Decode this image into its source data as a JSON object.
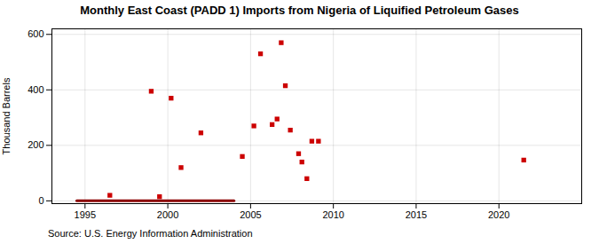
{
  "chart_data": {
    "type": "scatter",
    "title": "Monthly East Coast (PADD 1) Imports from Nigeria of Liquified Petroleum Gases",
    "ylabel": "Thousand Barrels",
    "source": "Source: U.S. Energy Information Administration",
    "xlim": [
      1993,
      2025
    ],
    "xticks": [
      1995,
      2000,
      2005,
      2010,
      2015,
      2020
    ],
    "ylim": [
      -10,
      620
    ],
    "yticks": [
      0,
      200,
      400,
      600
    ],
    "grid": true,
    "series": [
      {
        "type": "scatter",
        "color": "#cc0000",
        "marker": "square",
        "x": [
          1996.5,
          1999.0,
          1999.5,
          2000.2,
          2000.8,
          2002.0,
          2004.5,
          2005.2,
          2005.6,
          2006.3,
          2006.6,
          2006.85,
          2007.1,
          2007.4,
          2007.9,
          2008.1,
          2008.4,
          2008.7,
          2009.1,
          2021.5
        ],
        "values": [
          20,
          395,
          15,
          370,
          120,
          245,
          160,
          270,
          530,
          275,
          295,
          570,
          415,
          255,
          170,
          140,
          80,
          215,
          215,
          147
        ]
      },
      {
        "type": "line",
        "color": "#8b0000",
        "line_style": "solid",
        "x": [
          1994.5,
          2004.0
        ],
        "values": [
          0,
          0
        ]
      }
    ]
  }
}
